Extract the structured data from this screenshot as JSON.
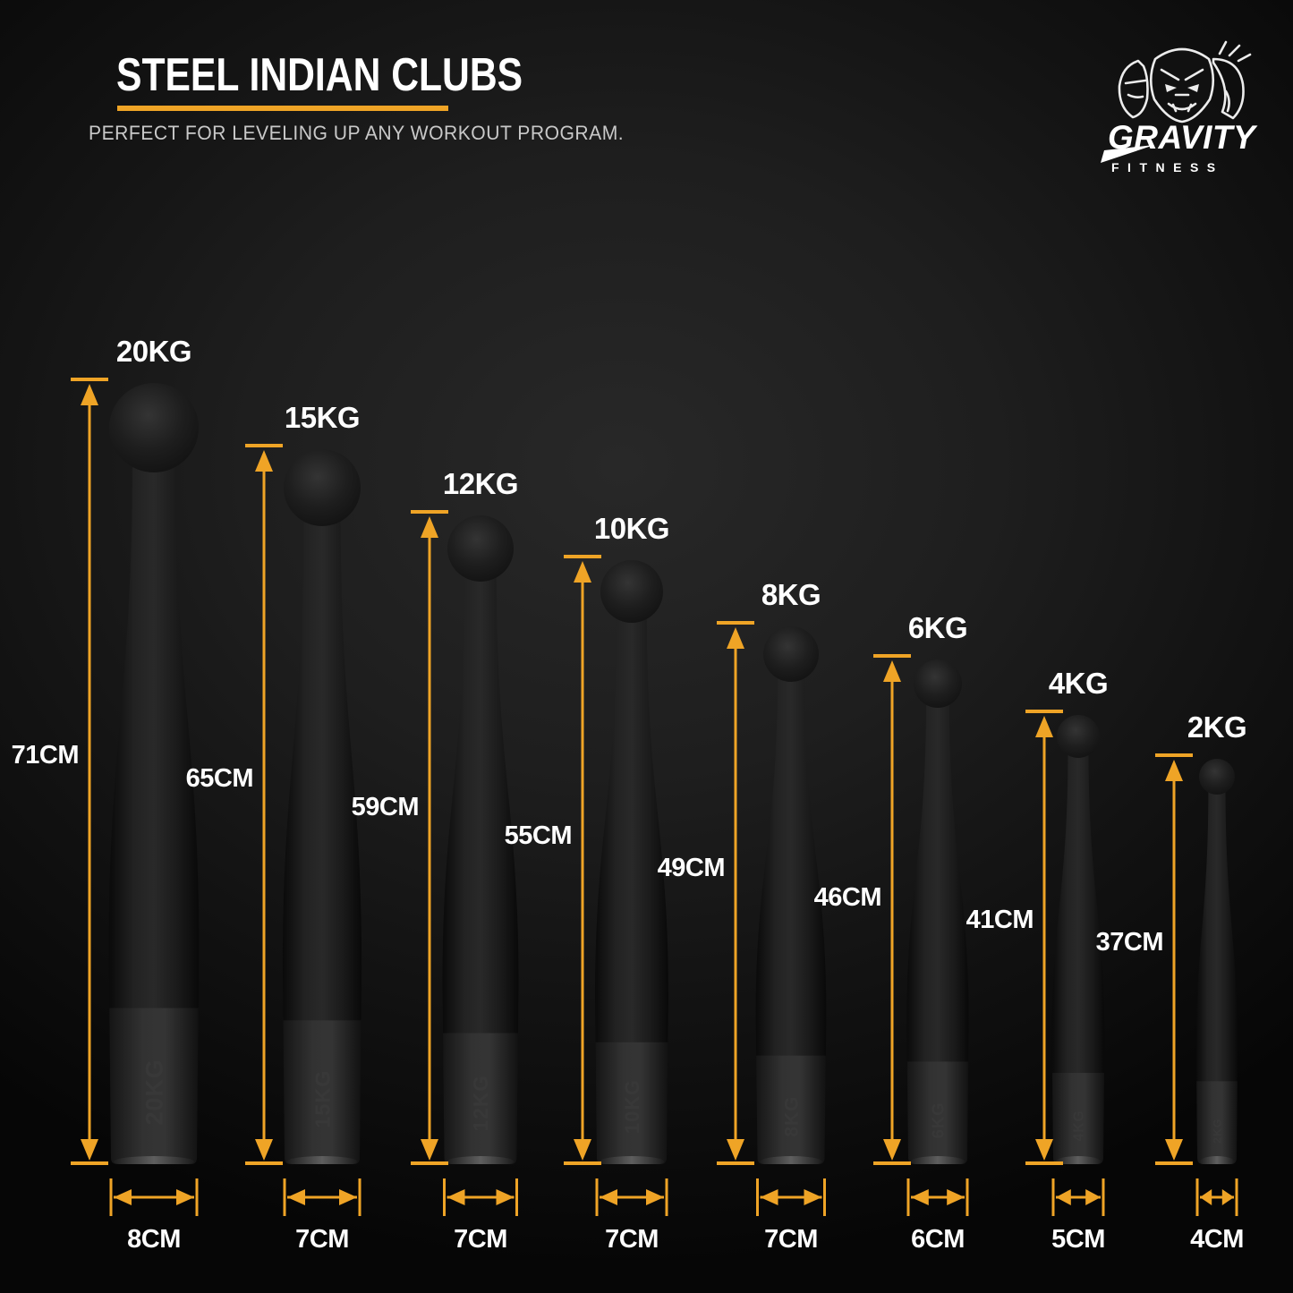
{
  "header": {
    "title": "STEEL INDIAN CLUBS",
    "subtitle": "PERFECT FOR LEVELING UP ANY WORKOUT PROGRAM."
  },
  "logo": {
    "brand": "GRAVITY",
    "sub": "FITNESS"
  },
  "colors": {
    "accent": "#EFA426",
    "label_text": "#FFFFFF",
    "subtitle_text": "#C9C9C9"
  },
  "units": {
    "weight": "KG",
    "length": "CM"
  },
  "clubs": [
    {
      "weight_label": "20KG",
      "height_label": "71CM",
      "width_label": "8CM",
      "weight_kg": 20,
      "height_cm": 71,
      "width_cm": 8
    },
    {
      "weight_label": "15KG",
      "height_label": "65CM",
      "width_label": "7CM",
      "weight_kg": 15,
      "height_cm": 65,
      "width_cm": 7
    },
    {
      "weight_label": "12KG",
      "height_label": "59CM",
      "width_label": "7CM",
      "weight_kg": 12,
      "height_cm": 59,
      "width_cm": 7
    },
    {
      "weight_label": "10KG",
      "height_label": "55CM",
      "width_label": "7CM",
      "weight_kg": 10,
      "height_cm": 55,
      "width_cm": 7
    },
    {
      "weight_label": "8KG",
      "height_label": "49CM",
      "width_label": "7CM",
      "weight_kg": 8,
      "height_cm": 49,
      "width_cm": 7
    },
    {
      "weight_label": "6KG",
      "height_label": "46CM",
      "width_label": "6CM",
      "weight_kg": 6,
      "height_cm": 46,
      "width_cm": 6
    },
    {
      "weight_label": "4KG",
      "height_label": "41CM",
      "width_label": "5CM",
      "weight_kg": 4,
      "height_cm": 41,
      "width_cm": 5
    },
    {
      "weight_label": "2KG",
      "height_label": "37CM",
      "width_label": "4CM",
      "weight_kg": 2,
      "height_cm": 37,
      "width_cm": 4
    }
  ]
}
